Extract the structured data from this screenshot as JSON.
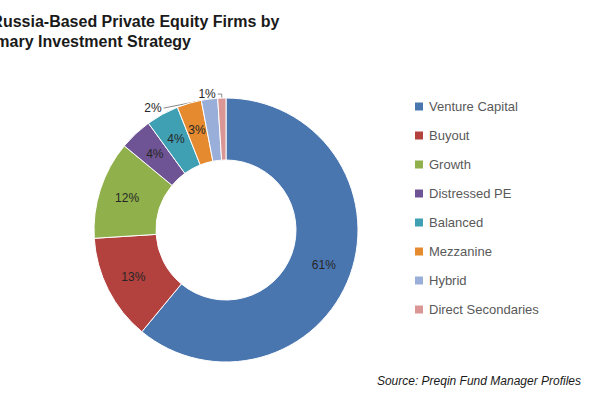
{
  "chart_data": {
    "type": "pie",
    "title": "Breakdown of Russia-Based Private Equity Firms by Primary Investment Strategy",
    "annotation": "Source: Preqin Fund Manager Profiles",
    "categories": [
      "Venture Capital",
      "Buyout",
      "Growth",
      "Distressed PE",
      "Balanced",
      "Mezzanine",
      "Hybrid",
      "Direct Secondaries"
    ],
    "values": [
      61,
      13,
      12,
      4,
      4,
      3,
      2,
      1
    ],
    "value_labels": [
      "61%",
      "13%",
      "12%",
      "4%",
      "4%",
      "3%",
      "2%",
      "1%"
    ],
    "colors": [
      "#4a76b0",
      "#b3413e",
      "#8fb04a",
      "#6e5494",
      "#3f9fb3",
      "#e58a2f",
      "#99afd9",
      "#d99694"
    ],
    "data_labels": true,
    "legend": "right"
  }
}
